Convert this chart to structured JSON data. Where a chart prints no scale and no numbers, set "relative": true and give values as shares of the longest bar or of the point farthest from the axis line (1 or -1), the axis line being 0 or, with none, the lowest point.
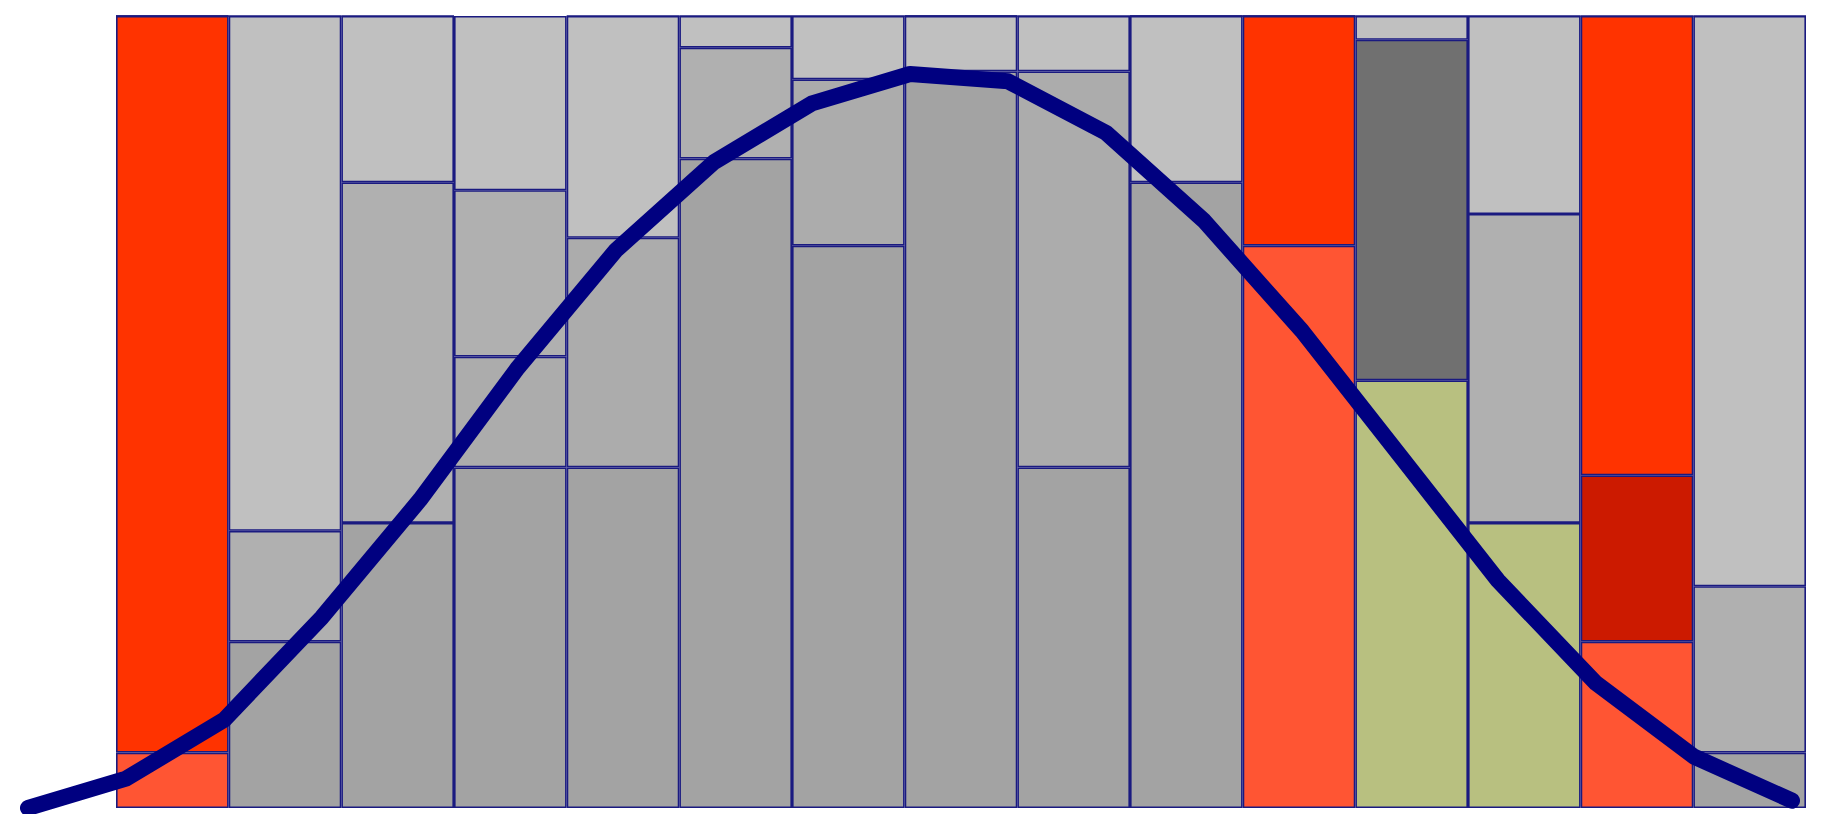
{
  "chart_data": [
    {
      "type": "bar",
      "stacked": true,
      "relative": true,
      "categories": [
        null,
        null,
        null,
        null,
        null,
        null,
        null,
        null,
        null,
        null,
        null,
        null,
        null,
        null,
        null
      ],
      "series": [
        {
          "values": [
            0.07,
            0.21,
            0.36,
            0.43,
            0.43,
            0.82,
            0.71,
            0.93,
            0.43,
            0.79,
            0.71,
            0.54,
            0.36,
            0.21,
            0.07
          ],
          "colors": [
            "#ff5533",
            "#a3a3a3",
            "#a3a3a3",
            "#a3a3a3",
            "#a3a3a3",
            "#a3a3a3",
            "#a3a3a3",
            "#a3a3a3",
            "#a3a3a3",
            "#a3a3a3",
            "#ff5533",
            "#b8c080",
            "#b8c080",
            "#ff5533",
            "#a3a3a3"
          ]
        },
        {
          "values": [
            0.93,
            0.14,
            0.43,
            0.14,
            0.29,
            0.14,
            0.21,
            0.07,
            0.5,
            0.21,
            0.29,
            0.43,
            0.39,
            0.21,
            0.21
          ],
          "colors": [
            "#ff3300",
            "#b0b0b0",
            "#b0b0b0",
            "#acacac",
            "#acacac",
            "#b0b0b0",
            "#acacac",
            "#c0c0c0",
            "#acacac",
            "#c0c0c0",
            "#ff3300",
            "#707070",
            "#b0b0b0",
            "#cc1a00",
            "#b0b0b0"
          ]
        },
        {
          "values": [
            0,
            0.65,
            0.21,
            0.21,
            0.28,
            0.04,
            0.08,
            0,
            0.07,
            0,
            0,
            0.03,
            0.25,
            0.58,
            0.72
          ],
          "colors": [
            "#ff3300",
            "#c0c0c0",
            "#c0c0c0",
            "#b0b0b0",
            "#c0c0c0",
            "#c0c0c0",
            "#c0c0c0",
            "#c0c0c0",
            "#c0c0c0",
            "#c0c0c0",
            "#ff3300",
            "#c0c0c0",
            "#c0c0c0",
            "#ff3300",
            "#c0c0c0"
          ]
        },
        {
          "values": [
            0,
            0,
            0,
            0.22,
            0,
            0,
            0,
            0,
            0,
            0,
            0,
            0,
            0,
            0,
            0
          ],
          "colors": [
            "#ff3300",
            "#c0c0c0",
            "#c0c0c0",
            "#c0c0c0",
            "#c0c0c0",
            "#c0c0c0",
            "#c0c0c0",
            "#c0c0c0",
            "#c0c0c0",
            "#c0c0c0",
            "#ff3300",
            "#c0c0c0",
            "#c0c0c0",
            "#ff3300",
            "#c0c0c0"
          ]
        }
      ]
    },
    {
      "type": "line",
      "relative": true,
      "categories": [
        null,
        null,
        null,
        null,
        null,
        null,
        null,
        null,
        null,
        null,
        null,
        null,
        null,
        null,
        null,
        null,
        null,
        null,
        null
      ],
      "series": [
        {
          "color": "#000080",
          "values": [
            0,
            0.04,
            0.12,
            0.26,
            0.42,
            0.6,
            0.76,
            0.88,
            0.96,
            1,
            0.99,
            0.92,
            0.8,
            0.65,
            0.48,
            0.31,
            0.17,
            0.07,
            0.01
          ]
        }
      ]
    }
  ]
}
